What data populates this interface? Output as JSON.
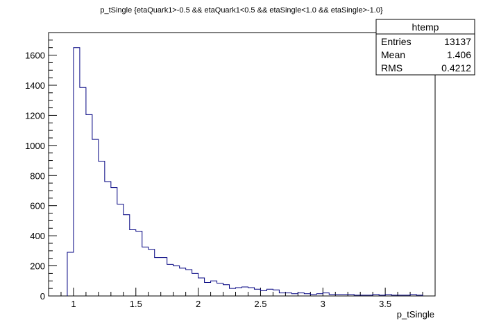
{
  "chart_data": {
    "type": "histogram",
    "title": "p_tSingle {etaQuark1>-0.5 && etaQuark1<0.5 && etaSingle<1.0 && etaSingle>-1.0}",
    "xlabel": "p_tSingle",
    "ylabel": "",
    "xlim": [
      0.8,
      3.9
    ],
    "ylim": [
      0,
      1750
    ],
    "x_ticks": [
      1,
      1.5,
      2,
      2.5,
      3,
      3.5
    ],
    "x_tick_labels": [
      "1",
      "1.5",
      "2",
      "2.5",
      "3",
      "3.5"
    ],
    "y_ticks": [
      0,
      200,
      400,
      600,
      800,
      1000,
      1200,
      1400,
      1600
    ],
    "y_tick_labels": [
      "0",
      "200",
      "400",
      "600",
      "800",
      "1000",
      "1200",
      "1400",
      "1600"
    ],
    "grid": false,
    "line_color": "#000080",
    "bin_width": 0.05,
    "bin_start": 0.95,
    "values": [
      290,
      1650,
      1385,
      1205,
      1040,
      895,
      760,
      720,
      610,
      540,
      440,
      430,
      325,
      310,
      255,
      255,
      210,
      200,
      185,
      175,
      150,
      120,
      90,
      100,
      85,
      75,
      50,
      55,
      60,
      55,
      45,
      35,
      45,
      40,
      20,
      20,
      15,
      20,
      15,
      10,
      15,
      20,
      10,
      10,
      10,
      10,
      5,
      5,
      5,
      10,
      5,
      10,
      5,
      5,
      5,
      10,
      5
    ]
  },
  "stats_box": {
    "title": "htemp",
    "rows": [
      {
        "label": "Entries",
        "value": "13137"
      },
      {
        "label": "Mean",
        "value": "1.406"
      },
      {
        "label": "RMS",
        "value": "0.4212"
      }
    ]
  }
}
